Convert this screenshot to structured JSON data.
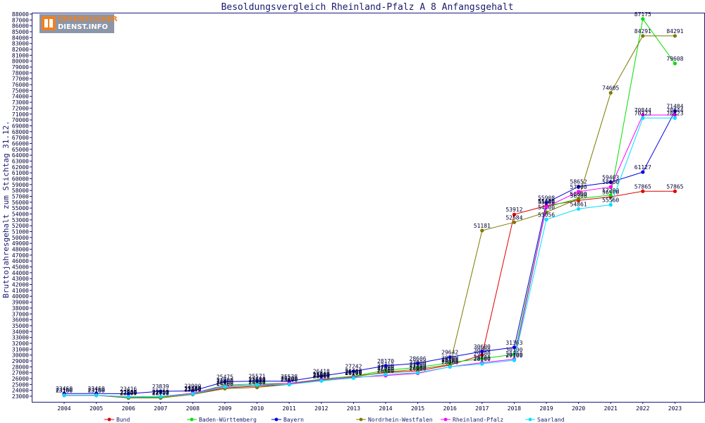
{
  "logo": {
    "line1": "ÖFFENTLICHER",
    "line2": "DIENST.INFO"
  },
  "chart_data": {
    "type": "line",
    "title": "Besoldungsvergleich Rheinland-Pfalz A 8 Anfangsgehalt",
    "xlabel": "",
    "ylabel": "Bruttojahresgehalt zum Stichtag 31.12.",
    "x": [
      2004,
      2005,
      2006,
      2007,
      2008,
      2009,
      2010,
      2011,
      2012,
      2013,
      2014,
      2015,
      2016,
      2017,
      2018,
      2019,
      2020,
      2021,
      2022,
      2023
    ],
    "ylim": [
      22000,
      88000
    ],
    "ytick_step": 1000,
    "grid": false,
    "legend_position": "bottom",
    "series": [
      {
        "name": "Bund",
        "color": "#e00000",
        "values": [
          23160,
          23160,
          22850,
          22850,
          23400,
          24400,
          24700,
          25000,
          25900,
          26400,
          27000,
          27300,
          28300,
          30000,
          53912,
          55400,
          56300,
          56900,
          57865,
          57865
        ]
      },
      {
        "name": "Baden-Württemberg",
        "color": "#00e000",
        "values": [
          23160,
          23160,
          22850,
          22850,
          23500,
          24900,
          25100,
          25200,
          25900,
          26400,
          27400,
          27900,
          28700,
          29400,
          30100,
          55200,
          56600,
          57200,
          87175,
          79608
        ]
      },
      {
        "name": "Bayern",
        "color": "#0000e0",
        "values": [
          23460,
          23460,
          23416,
          23839,
          23900,
          25475,
          25571,
          25538,
          26418,
          27242,
          28170,
          28606,
          29642,
          30600,
          31303,
          55908,
          58652,
          59403,
          61127,
          71484
        ]
      },
      {
        "name": "Nordrhein-Westfalen",
        "color": "#7a7a00",
        "values": [
          23160,
          23160,
          22700,
          22700,
          23300,
          24300,
          24500,
          25000,
          25700,
          26300,
          27100,
          27600,
          28400,
          51181,
          52584,
          54300,
          56600,
          74605,
          84291,
          84291
        ]
      },
      {
        "name": "Rheinland-Pfalz",
        "color": "#ff00ff",
        "values": [
          23160,
          23160,
          22900,
          22950,
          23500,
          24700,
          24900,
          25200,
          25800,
          26200,
          26500,
          26900,
          28000,
          28700,
          29300,
          55200,
          57800,
          58600,
          70844,
          70844
        ]
      },
      {
        "name": "Saarland",
        "color": "#00e0ff",
        "values": [
          23160,
          23160,
          22900,
          22950,
          23400,
          24600,
          24900,
          25000,
          25600,
          26100,
          26700,
          27000,
          28000,
          28500,
          29100,
          53056,
          54861,
          55560,
          70323,
          70323
        ]
      }
    ]
  }
}
